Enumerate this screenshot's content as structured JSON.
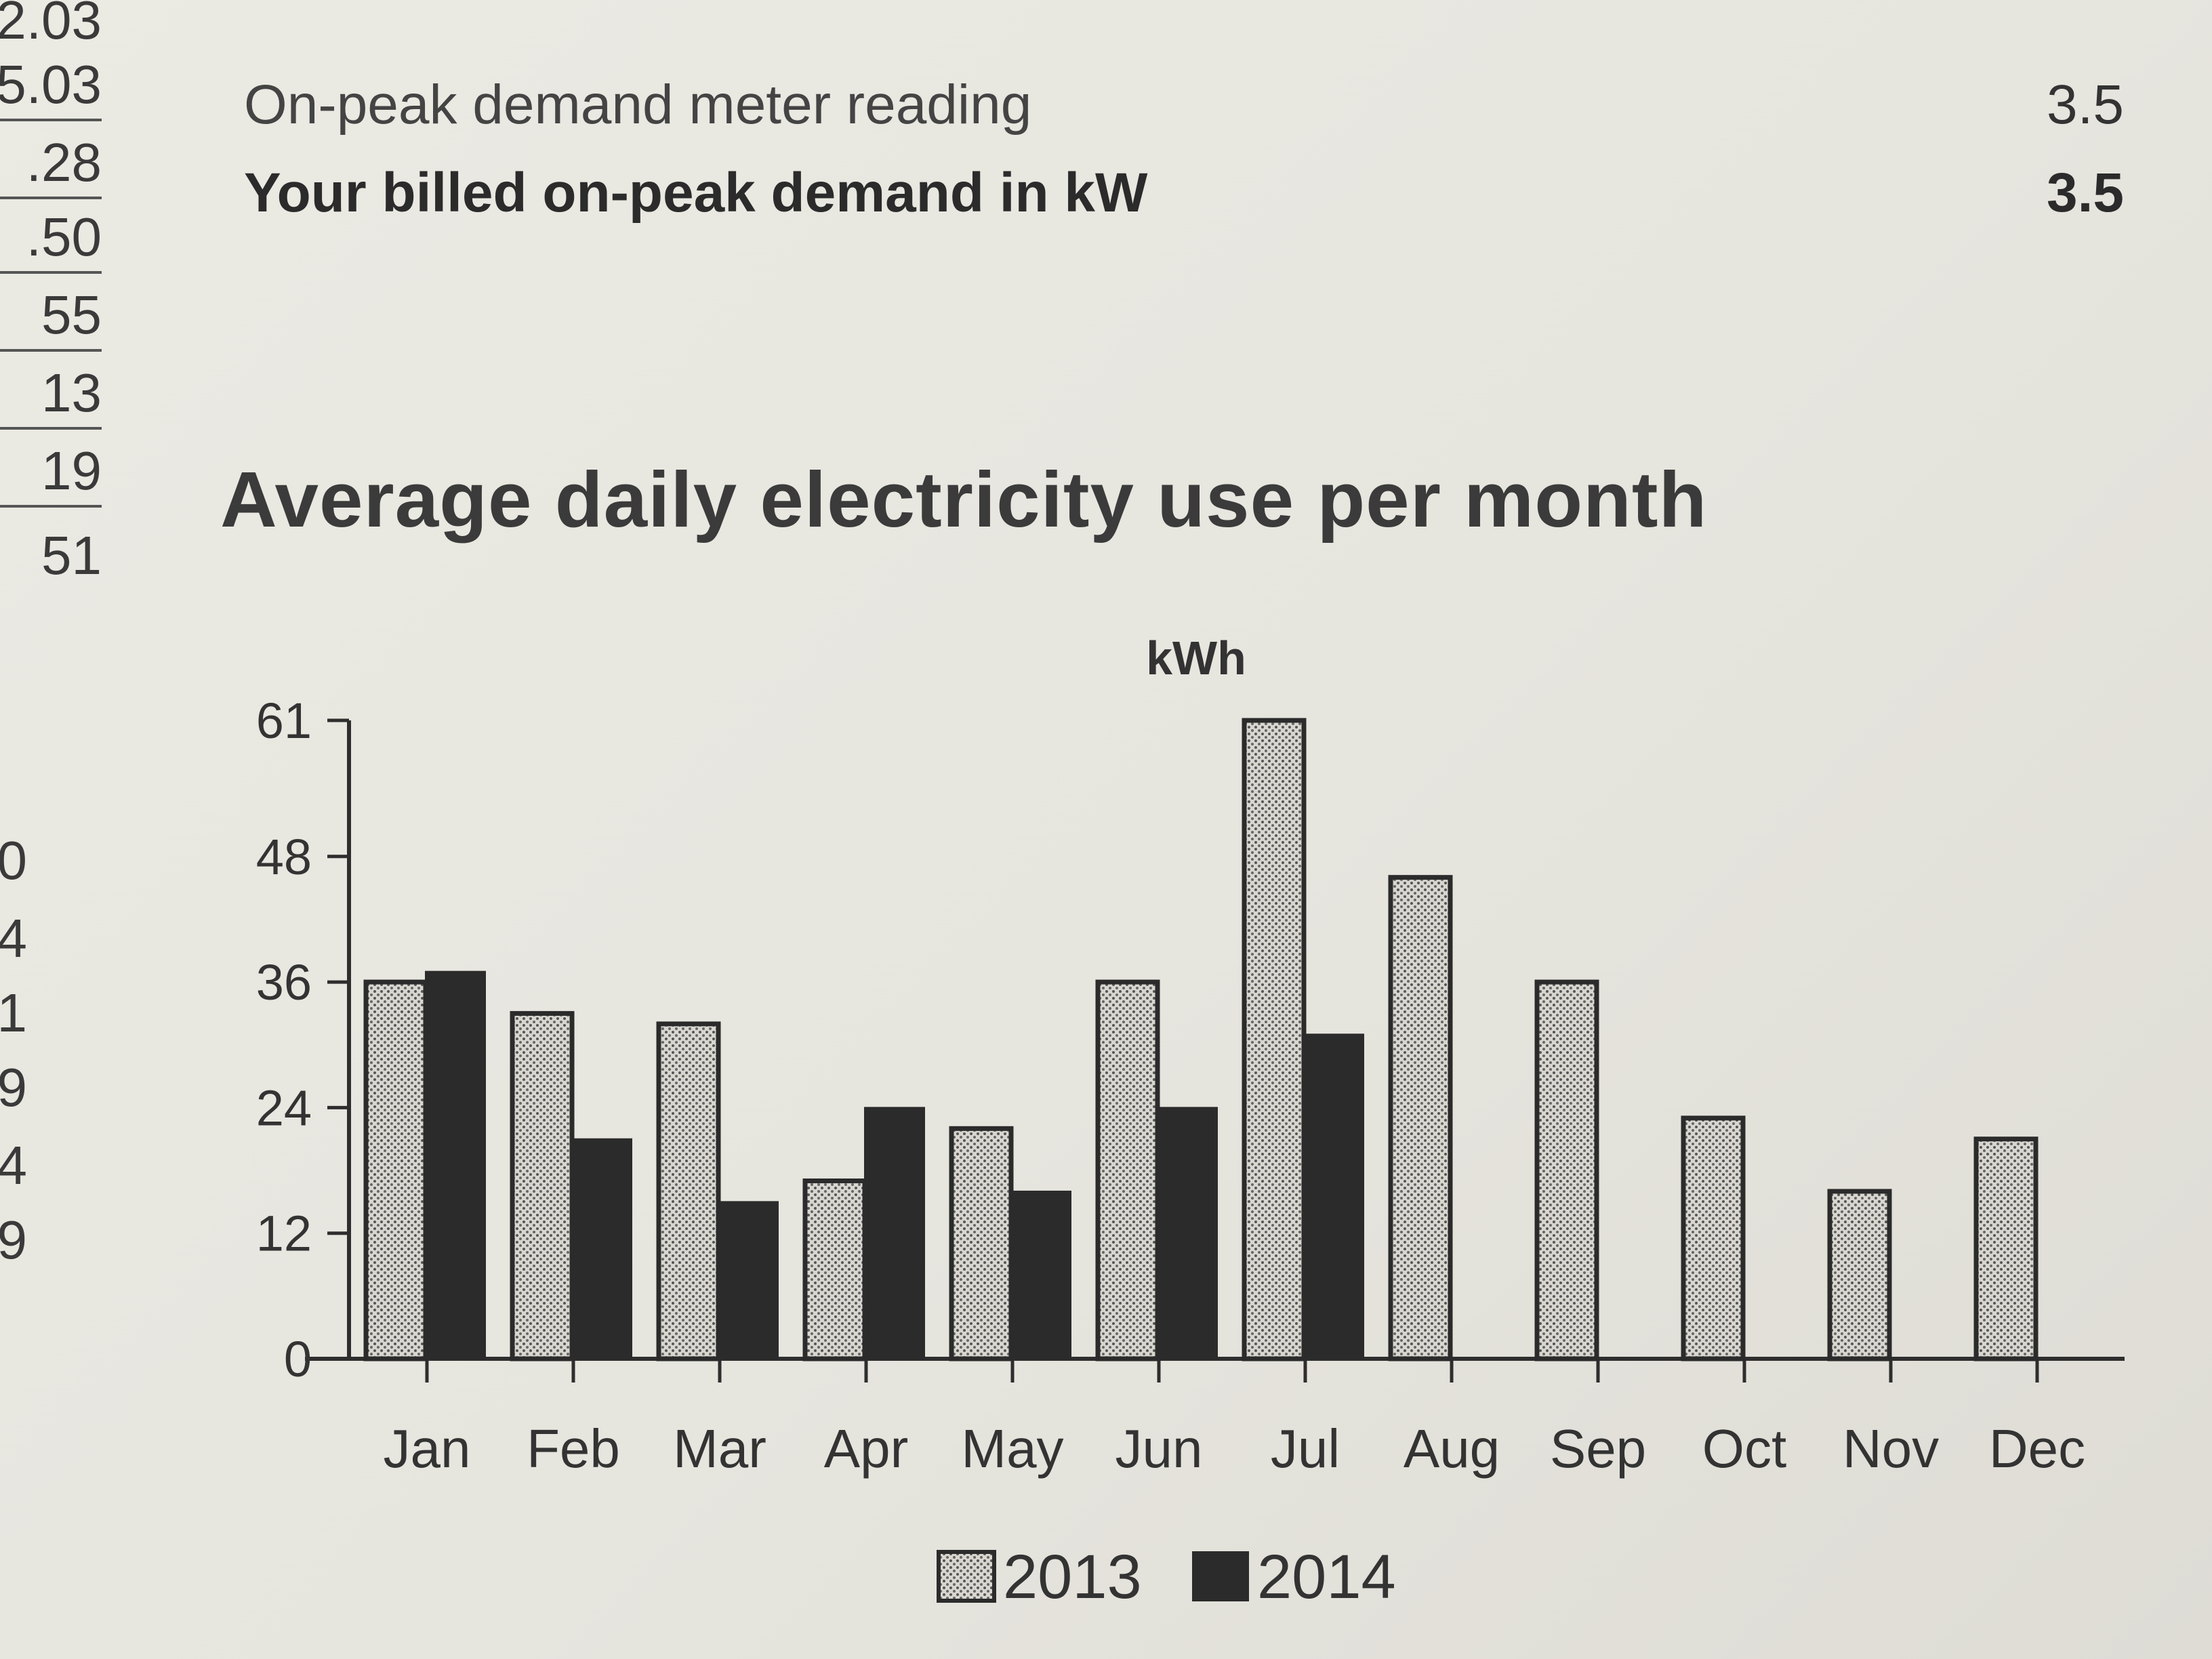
{
  "margin": {
    "top_values": [
      "2.03",
      "5.03",
      ".28",
      ".50",
      "55",
      "13",
      "19",
      "51"
    ],
    "lower_values": [
      "0",
      "4",
      "1",
      "9",
      "4",
      "9"
    ]
  },
  "meter": {
    "row1_label": "On-peak demand meter reading",
    "row1_value": "3.5",
    "row2_label": "Your billed on-peak demand in kW",
    "row2_value": "3.5"
  },
  "chart_data": {
    "type": "bar",
    "title": "Average daily electricity use per month",
    "ylabel": "kWh",
    "xlabel": "",
    "ylim": [
      0,
      61
    ],
    "yticks": [
      0,
      12,
      24,
      36,
      48,
      61
    ],
    "categories": [
      "Jan",
      "Feb",
      "Mar",
      "Apr",
      "May",
      "Jun",
      "Jul",
      "Aug",
      "Sep",
      "Oct",
      "Nov",
      "Dec"
    ],
    "series": [
      {
        "name": "2013",
        "pattern": "dotted",
        "values": [
          36,
          33,
          32,
          17,
          22,
          36,
          61,
          46,
          36,
          23,
          16,
          21
        ]
      },
      {
        "name": "2014",
        "pattern": "solid",
        "values": [
          37,
          21,
          15,
          24,
          16,
          24,
          31,
          null,
          null,
          null,
          null,
          null
        ]
      }
    ],
    "legend_position": "bottom-center",
    "grid": false,
    "colors": {
      "solid_bar": "#2b2b2b",
      "dotted_fill": "#d8d6cf",
      "dotted_dot": "#555555",
      "axis": "#2e2e2e"
    }
  }
}
